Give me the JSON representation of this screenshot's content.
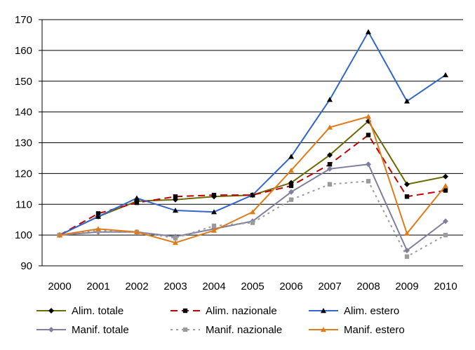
{
  "chart_data": {
    "type": "line",
    "title": "",
    "xlabel": "",
    "ylabel": "",
    "categories": [
      "2000",
      "2001",
      "2002",
      "2003",
      "2004",
      "2005",
      "2006",
      "2007",
      "2008",
      "2009",
      "2010"
    ],
    "ylim": [
      90,
      170
    ],
    "yticks": [
      90,
      100,
      110,
      120,
      130,
      140,
      150,
      160,
      170
    ],
    "grid": "horizontal",
    "legend_placement": "bottom",
    "series": [
      {
        "name": "Alim. totale",
        "color": "#6b6b00",
        "dash": "solid",
        "marker": "diamond",
        "values": [
          100,
          106,
          111,
          111.5,
          112.5,
          113,
          117,
          126,
          137,
          116.5,
          119
        ]
      },
      {
        "name": "Alim. nazionale",
        "color": "#c00000",
        "dash": "dashed",
        "marker": "square",
        "values": [
          100,
          107,
          110.5,
          112.5,
          113,
          113,
          116,
          123,
          132.5,
          112.5,
          114.5
        ]
      },
      {
        "name": "Alim. estero",
        "color": "#3366cc",
        "dash": "solid",
        "marker": "triangle",
        "values": [
          100,
          106,
          112,
          108,
          107.5,
          113,
          125.5,
          144,
          166,
          143.5,
          152
        ]
      },
      {
        "name": "Manif. totale",
        "color": "#7f7f9f",
        "dash": "solid",
        "marker": "diamond",
        "values": [
          100,
          101,
          101,
          99.5,
          102,
          104.5,
          114,
          121.5,
          123,
          95,
          104.5
        ]
      },
      {
        "name": "Manif. nazionale",
        "color": "#9b9b9b",
        "dash": "dotted",
        "marker": "square",
        "values": [
          100,
          101.5,
          101,
          99,
          103,
          104,
          111.5,
          116.5,
          117.5,
          93,
          100
        ]
      },
      {
        "name": "Manif. estero",
        "color": "#e07b1a",
        "dash": "solid",
        "marker": "triangle",
        "values": [
          100,
          102,
          101,
          97.5,
          101.5,
          107.5,
          121,
          135,
          138.5,
          100.5,
          116
        ]
      }
    ]
  }
}
